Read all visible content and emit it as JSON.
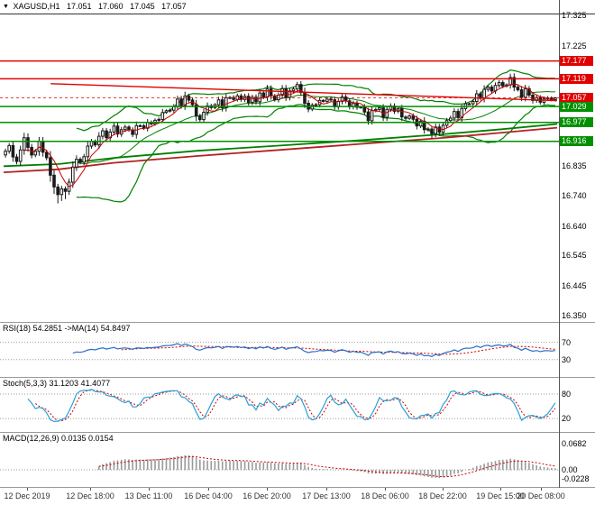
{
  "quote": {
    "symbol": "XAGUSD,H1",
    "open": "17.051",
    "high": "17.060",
    "low": "17.045",
    "close": "17.057"
  },
  "icons": {
    "symbol_marker": "▼"
  },
  "colors": {
    "resistance": "#e00000",
    "support": "#009000",
    "current_badge": "#e00000",
    "candle": "#1a1a1a",
    "band": "#008000",
    "fast_ma": "#cc0000",
    "slow_ma_green": "#008000",
    "slow_ma_red": "#b22222",
    "trendline": "#e00000",
    "rsi_line": "#2a6fc9",
    "rsi_signal": "#cc0000",
    "stoch_line": "#2a9fd8",
    "stoch_signal": "#cc0000",
    "macd_hist": "#9a9a9a",
    "macd_signal": "#cc0000",
    "panel_level": "#9a9a9a"
  },
  "chart_data": {
    "type": "candlestick",
    "title": "XAGUSD,H1",
    "timeframe": "H1",
    "last_ohlc": {
      "open": 17.051,
      "high": 17.06,
      "low": 17.045,
      "close": 17.057
    },
    "ylim": [
      16.329,
      17.375
    ],
    "y_ticks": [
      17.325,
      17.225,
      16.835,
      16.74,
      16.64,
      16.545,
      16.445,
      16.35
    ],
    "price_badges": [
      {
        "price": 17.177,
        "label": "17.177",
        "type": "resistance"
      },
      {
        "price": 17.119,
        "label": "17.119",
        "type": "resistance"
      },
      {
        "price": 17.057,
        "label": "17.057",
        "type": "current"
      },
      {
        "price": 17.029,
        "label": "17.029",
        "type": "support"
      },
      {
        "price": 16.977,
        "label": "16.977",
        "type": "support"
      },
      {
        "price": 16.916,
        "label": "16.916",
        "type": "support"
      }
    ],
    "levels": {
      "resistance": [
        17.177,
        17.119
      ],
      "support": [
        17.029,
        16.977,
        16.916
      ]
    },
    "trendline": {
      "x1": 0.085,
      "p1": 17.103,
      "x2": 1.0,
      "p2": 17.048
    },
    "slow_ma_green": [
      [
        0,
        16.835
      ],
      [
        0.1,
        16.842
      ],
      [
        0.2,
        16.862
      ],
      [
        0.35,
        16.885
      ],
      [
        0.5,
        16.902
      ],
      [
        0.65,
        16.92
      ],
      [
        0.8,
        16.94
      ],
      [
        0.9,
        16.955
      ],
      [
        1,
        16.972
      ]
    ],
    "slow_ma_red": [
      [
        0,
        16.815
      ],
      [
        0.1,
        16.825
      ],
      [
        0.2,
        16.846
      ],
      [
        0.35,
        16.868
      ],
      [
        0.5,
        16.888
      ],
      [
        0.65,
        16.908
      ],
      [
        0.8,
        16.928
      ],
      [
        0.9,
        16.944
      ],
      [
        1,
        16.96
      ]
    ],
    "closes": [
      16.88,
      16.9,
      16.87,
      16.85,
      16.89,
      16.92,
      16.9,
      16.87,
      16.89,
      16.91,
      16.88,
      16.86,
      16.81,
      16.77,
      16.74,
      16.76,
      16.75,
      16.79,
      16.83,
      16.86,
      16.84,
      16.87,
      16.9,
      16.92,
      16.9,
      16.93,
      16.95,
      16.93,
      16.95,
      16.96,
      16.94,
      16.95,
      16.97,
      16.95,
      16.94,
      16.96,
      16.97,
      16.96,
      16.98,
      16.97,
      16.98,
      16.99,
      17.01,
      17.02,
      17.01,
      17.03,
      17.05,
      17.04,
      17.06,
      17.05,
      17.03,
      17.0,
      16.99,
      17.01,
      17.03,
      17.02,
      17.04,
      17.05,
      17.03,
      17.05,
      17.06,
      17.05,
      17.07,
      17.05,
      17.06,
      17.04,
      17.06,
      17.05,
      17.07,
      17.06,
      17.08,
      17.07,
      17.05,
      17.07,
      17.08,
      17.06,
      17.08,
      17.09,
      17.1,
      17.07,
      17.04,
      17.02,
      17.04,
      17.03,
      17.05,
      17.04,
      17.06,
      17.05,
      17.03,
      17.04,
      17.06,
      17.05,
      17.03,
      17.04,
      17.02,
      17.03,
      17.01,
      16.99,
      17.01,
      17.02,
      17.02,
      17.0,
      17.02,
      17.03,
      17.01,
      17.02,
      17.0,
      16.99,
      17.0,
      16.98,
      16.97,
      16.98,
      16.96,
      16.95,
      16.94,
      16.96,
      16.95,
      16.97,
      16.98,
      16.99,
      17.01,
      17.0,
      17.02,
      17.04,
      17.03,
      17.05,
      17.07,
      17.06,
      17.08,
      17.09,
      17.08,
      17.1,
      17.11,
      17.09,
      17.1,
      17.12,
      17.1,
      17.08,
      17.06,
      17.08,
      17.07,
      17.05,
      17.06,
      17.04,
      17.05,
      17.06,
      17.051,
      17.057
    ],
    "wick_overrides": [
      {
        "i": 13,
        "low": 16.745
      },
      {
        "i": 14,
        "low": 16.714
      },
      {
        "i": 15,
        "low": 16.722
      },
      {
        "i": 16,
        "low": 16.728
      },
      {
        "i": 114,
        "low": 16.925
      },
      {
        "i": 147,
        "high": 17.06,
        "low": 17.045
      }
    ],
    "x_labels": [
      {
        "text": "12 Dec 2019",
        "pos": 0.042
      },
      {
        "text": "12 Dec 18:00",
        "pos": 0.156
      },
      {
        "text": "13 Dec 11:00",
        "pos": 0.262
      },
      {
        "text": "16 Dec 04:00",
        "pos": 0.37
      },
      {
        "text": "16 Dec 20:00",
        "pos": 0.476
      },
      {
        "text": "17 Dec 13:00",
        "pos": 0.583
      },
      {
        "text": "18 Dec 06:00",
        "pos": 0.689
      },
      {
        "text": "18 Dec 22:00",
        "pos": 0.793
      },
      {
        "text": "19 Dec 15:00",
        "pos": 0.897
      },
      {
        "text": "20 Dec 08:00",
        "pos": 0.971
      }
    ],
    "indicators": {
      "rsi": {
        "label": "RSI(18) 54.2851 ->MA(14) 54.8497",
        "period": 18,
        "signal_period": 14,
        "value": 54.2851,
        "signal_value": 54.8497,
        "levels": [
          70,
          30
        ],
        "range": [
          -10,
          115
        ]
      },
      "stoch": {
        "label": "Stoch(5,3,3) 31.1203 41.4077",
        "k": 5,
        "d": 3,
        "slowing": 3,
        "value": 31.1203,
        "signal_value": 41.4077,
        "levels": [
          80,
          20
        ],
        "range": [
          -13,
          120
        ]
      },
      "macd": {
        "label": "MACD(12,26,9) 0.0135 0.0154",
        "fast": 12,
        "slow": 26,
        "signal": 9,
        "value": 0.0135,
        "signal_value": 0.0154,
        "axis": [
          {
            "v": 0.0682,
            "label": "0.0682"
          },
          {
            "v": 0.0,
            "label": "0.00"
          },
          {
            "v": -0.0228,
            "label": "-0.0228"
          }
        ],
        "range": [
          -0.0447,
          0.0964
        ]
      }
    }
  }
}
